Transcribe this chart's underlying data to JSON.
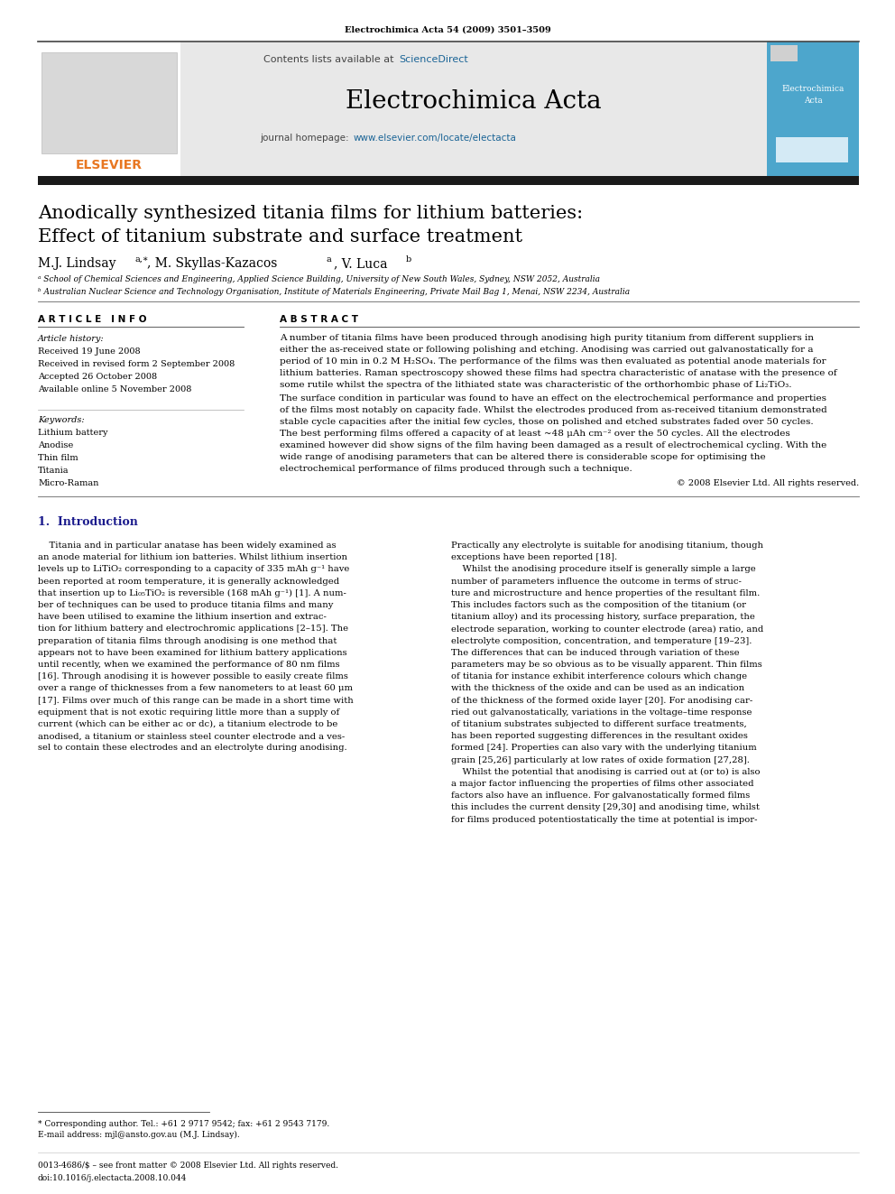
{
  "bg_color": "#ffffff",
  "journal_ref": "Electrochimica Acta 54 (2009) 3501–3509",
  "journal_name": "Electrochimica Acta",
  "sciencedirect_color": "#1a6496",
  "elsevier_color": "#e87722",
  "header_bg": "#e8e8e8",
  "dark_bar_color": "#1a1a1a",
  "paper_title_line1": "Anodically synthesized titania films for lithium batteries:",
  "paper_title_line2": "Effect of titanium substrate and surface treatment",
  "author_main": "M.J. Lindsay",
  "author_sup1": "a,∗",
  "author_mid": ", M. Skyllas-Kazacos",
  "author_sup2": "a",
  "author_end": ", V. Luca",
  "author_sup3": "b",
  "affil_a": "ᵃ School of Chemical Sciences and Engineering, Applied Science Building, University of New South Wales, Sydney, NSW 2052, Australia",
  "affil_b": "ᵇ Australian Nuclear Science and Technology Organisation, Institute of Materials Engineering, Private Mail Bag 1, Menai, NSW 2234, Australia",
  "article_info_header": "A R T I C L E   I N F O",
  "abstract_header": "A B S T R A C T",
  "article_history_label": "Article history:",
  "history": [
    "Received 19 June 2008",
    "Received in revised form 2 September 2008",
    "Accepted 26 October 2008",
    "Available online 5 November 2008"
  ],
  "keywords_label": "Keywords:",
  "keywords": [
    "Lithium battery",
    "Anodise",
    "Thin film",
    "Titania",
    "Micro-Raman"
  ],
  "abstract_para1": "A number of titania films have been produced through anodising high purity titanium from different suppliers in either the as-received state or following polishing and etching. Anodising was carried out galvanostatically for a period of 10 min in 0.2 M H₂SO₄. The performance of the films was then evaluated as potential anode materials for lithium batteries. Raman spectroscopy showed these films had spectra characteristic of anatase with the presence of some rutile whilst the spectra of the lithiated state was characteristic of the orthorhombic phase of Li₂TiO₃.",
  "abstract_para2": "    The surface condition in particular was found to have an effect on the electrochemical performance and properties of the films most notably on capacity fade. Whilst the electrodes produced from as-received titanium demonstrated stable cycle capacities after the initial few cycles, those on polished and etched substrates faded over 50 cycles. The best performing films offered a capacity of at least ~48 μAh cm⁻² over the 50 cycles. All the electrodes examined however did show signs of the film having been damaged as a result of electrochemical cycling. With the wide range of anodising parameters that can be altered there is considerable scope for optimising the electrochemical performance of films produced through such a technique.",
  "copyright_text": "© 2008 Elsevier Ltd. All rights reserved.",
  "section1_header": "1.  Introduction",
  "intro_col1_lines": [
    "    Titania and in particular anatase has been widely examined as",
    "an anode material for lithium ion batteries. Whilst lithium insertion",
    "levels up to LiTiO₂ corresponding to a capacity of 335 mAh g⁻¹ have",
    "been reported at room temperature, it is generally acknowledged",
    "that insertion up to Li₀₅TiO₂ is reversible (168 mAh g⁻¹) [1]. A num-",
    "ber of techniques can be used to produce titania films and many",
    "have been utilised to examine the lithium insertion and extrac-",
    "tion for lithium battery and electrochromic applications [2–15]. The",
    "preparation of titania films through anodising is one method that",
    "appears not to have been examined for lithium battery applications",
    "until recently, when we examined the performance of 80 nm films",
    "[16]. Through anodising it is however possible to easily create films",
    "over a range of thicknesses from a few nanometers to at least 60 μm",
    "[17]. Films over much of this range can be made in a short time with",
    "equipment that is not exotic requiring little more than a supply of",
    "current (which can be either ac or dc), a titanium electrode to be",
    "anodised, a titanium or stainless steel counter electrode and a ves-",
    "sel to contain these electrodes and an electrolyte during anodising."
  ],
  "intro_col2_lines": [
    "Practically any electrolyte is suitable for anodising titanium, though",
    "exceptions have been reported [18].",
    "    Whilst the anodising procedure itself is generally simple a large",
    "number of parameters influence the outcome in terms of struc-",
    "ture and microstructure and hence properties of the resultant film.",
    "This includes factors such as the composition of the titanium (or",
    "titanium alloy) and its processing history, surface preparation, the",
    "electrode separation, working to counter electrode (area) ratio, and",
    "electrolyte composition, concentration, and temperature [19–23].",
    "The differences that can be induced through variation of these",
    "parameters may be so obvious as to be visually apparent. Thin films",
    "of titania for instance exhibit interference colours which change",
    "with the thickness of the oxide and can be used as an indication",
    "of the thickness of the formed oxide layer [20]. For anodising car-",
    "ried out galvanostatically, variations in the voltage–time response",
    "of titanium substrates subjected to different surface treatments,",
    "has been reported suggesting differences in the resultant oxides",
    "formed [24]. Properties can also vary with the underlying titanium",
    "grain [25,26] particularly at low rates of oxide formation [27,28].",
    "    Whilst the potential that anodising is carried out at (or to) is also",
    "a major factor influencing the properties of films other associated",
    "factors also have an influence. For galvanostatically formed films",
    "this includes the current density [29,30] and anodising time, whilst",
    "for films produced potentiostatically the time at potential is impor-"
  ],
  "footnote_star": "* Corresponding author. Tel.: +61 2 9717 9542; fax: +61 2 9543 7179.",
  "footnote_email": "E-mail address: mjl@ansto.gov.au (M.J. Lindsay).",
  "footer_issn": "0013-4686/$ – see front matter © 2008 Elsevier Ltd. All rights reserved.",
  "footer_doi": "doi:10.1016/j.electacta.2008.10.044"
}
